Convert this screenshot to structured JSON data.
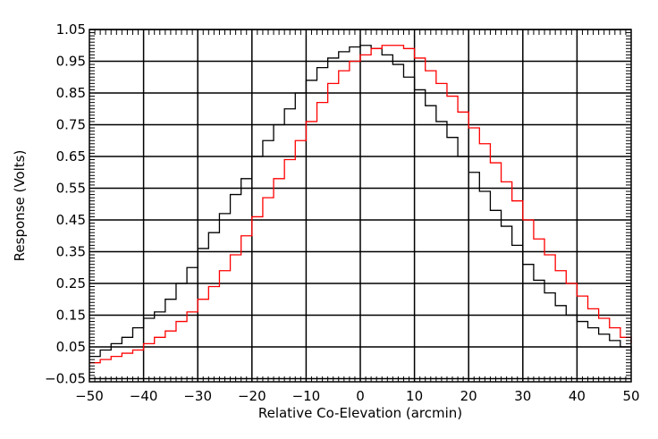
{
  "chart_data": {
    "type": "line",
    "title": "",
    "xlabel": "Relative Co-Elevation (arcmin)",
    "ylabel": "Response (Volts)",
    "xlim": [
      -50,
      50
    ],
    "ylim": [
      -0.06,
      1.05
    ],
    "x_ticks": [
      "−50",
      "−40",
      "−30",
      "−20",
      "−10",
      "0",
      "10",
      "20",
      "30",
      "40",
      "50"
    ],
    "x_tick_values": [
      -50,
      -40,
      -30,
      -20,
      -10,
      0,
      10,
      20,
      30,
      40,
      50
    ],
    "y_ticks": [
      "1.05",
      "0.95",
      "0.85",
      "0.75",
      "0.65",
      "0.55",
      "0.45",
      "0.35",
      "0.25",
      "0.15",
      "0.05",
      "−0.05"
    ],
    "y_tick_values": [
      1.05,
      0.95,
      0.85,
      0.75,
      0.65,
      0.55,
      0.45,
      0.35,
      0.25,
      0.15,
      0.05,
      -0.05
    ],
    "grid": true,
    "step": true,
    "series": [
      {
        "color": "#000000",
        "x": [
          -50,
          -48,
          -46,
          -44,
          -42,
          -40,
          -38,
          -36,
          -34,
          -32,
          -30,
          -28,
          -26,
          -24,
          -22,
          -20,
          -18,
          -16,
          -14,
          -12,
          -10,
          -8,
          -6,
          -4,
          -2,
          0,
          2,
          4,
          6,
          8,
          10,
          12,
          14,
          16,
          18,
          20,
          22,
          24,
          26,
          28,
          30,
          32,
          34,
          36,
          38,
          40,
          42,
          44,
          46,
          48,
          50
        ],
        "y": [
          0.02,
          0.04,
          0.06,
          0.08,
          0.11,
          0.14,
          0.16,
          0.2,
          0.25,
          0.3,
          0.36,
          0.41,
          0.47,
          0.53,
          0.58,
          0.65,
          0.7,
          0.75,
          0.8,
          0.85,
          0.89,
          0.93,
          0.96,
          0.98,
          0.995,
          1.0,
          0.99,
          0.97,
          0.94,
          0.9,
          0.86,
          0.81,
          0.76,
          0.71,
          0.65,
          0.6,
          0.54,
          0.48,
          0.43,
          0.37,
          0.31,
          0.26,
          0.22,
          0.18,
          0.15,
          0.13,
          0.11,
          0.09,
          0.07,
          0.05,
          0.03
        ]
      },
      {
        "color": "#ff0000",
        "x": [
          -50,
          -48,
          -46,
          -44,
          -42,
          -40,
          -38,
          -36,
          -34,
          -32,
          -30,
          -28,
          -26,
          -24,
          -22,
          -20,
          -18,
          -16,
          -14,
          -12,
          -10,
          -8,
          -6,
          -4,
          -2,
          0,
          2,
          4,
          6,
          8,
          10,
          12,
          14,
          16,
          18,
          20,
          22,
          24,
          26,
          28,
          30,
          32,
          34,
          36,
          38,
          40,
          42,
          44,
          46,
          48,
          50
        ],
        "y": [
          0.0,
          0.01,
          0.02,
          0.03,
          0.04,
          0.06,
          0.08,
          0.1,
          0.13,
          0.16,
          0.2,
          0.24,
          0.29,
          0.34,
          0.4,
          0.46,
          0.52,
          0.58,
          0.64,
          0.7,
          0.76,
          0.82,
          0.88,
          0.92,
          0.95,
          0.97,
          0.99,
          1.0,
          1.0,
          0.99,
          0.96,
          0.92,
          0.88,
          0.84,
          0.79,
          0.74,
          0.69,
          0.63,
          0.57,
          0.51,
          0.45,
          0.39,
          0.34,
          0.29,
          0.25,
          0.21,
          0.17,
          0.14,
          0.11,
          0.08,
          0.06
        ]
      }
    ]
  }
}
